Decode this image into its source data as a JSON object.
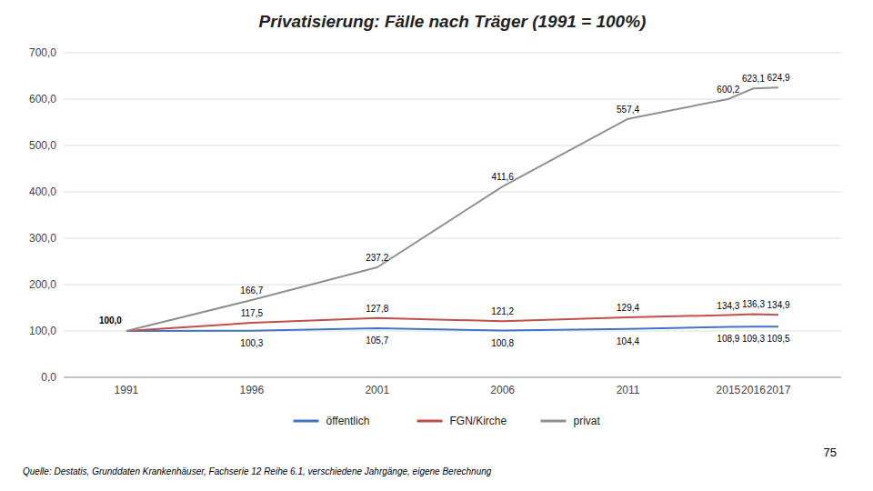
{
  "chart_data": {
    "type": "line",
    "title": "Privatisierung: Fälle nach Träger (1991 = 100%)",
    "x": [
      1991,
      1996,
      2001,
      2006,
      2011,
      2015,
      2016,
      2017
    ],
    "xlim": [
      1988.5,
      2019.5
    ],
    "xticks": [
      1991,
      1996,
      2001,
      2006,
      2011,
      2015,
      2016,
      2017
    ],
    "ylim": [
      0,
      700
    ],
    "yticks": [
      {
        "value": 0,
        "label": "0,0"
      },
      {
        "value": 100,
        "label": "100,0"
      },
      {
        "value": 200,
        "label": "200,0"
      },
      {
        "value": 300,
        "label": "300,0"
      },
      {
        "value": 400,
        "label": "400,0"
      },
      {
        "value": 500,
        "label": "500,0"
      },
      {
        "value": 600,
        "label": "600,0"
      },
      {
        "value": 700,
        "label": "700,0"
      }
    ],
    "grid": true,
    "legend": "bottom",
    "data_labels": true,
    "series": [
      {
        "name": "öffentlich",
        "color": "#4472C4",
        "values": [
          100.0,
          100.3,
          105.7,
          100.8,
          104.4,
          108.9,
          109.3,
          109.5
        ],
        "value_labels": [
          "100,0",
          "100,3",
          "105,7",
          "100,8",
          "104,4",
          "108,9",
          "109,3",
          "109,5"
        ]
      },
      {
        "name": "FGN/Kirche",
        "color": "#C0504D",
        "values": [
          100.0,
          117.5,
          127.8,
          121.2,
          129.4,
          134.3,
          136.3,
          134.9
        ],
        "value_labels": [
          null,
          "117,5",
          "127,8",
          "121,2",
          "129,4",
          "134,3",
          "136,3",
          "134,9"
        ]
      },
      {
        "name": "privat",
        "color": "#909090",
        "values": [
          100.0,
          166.7,
          237.2,
          411.6,
          557.4,
          600.2,
          623.1,
          624.9
        ],
        "value_labels": [
          null,
          "166,7",
          "237,2",
          "411,6",
          "557,4",
          "600,2",
          "623,1",
          "624,9"
        ]
      }
    ],
    "annotations": [
      "Quelle: Destatis, Grunddaten Krankenhäuser, Fachserie 12 Reihe 6.1, verschiedene Jahrgänge, eigene Berechnung",
      "75"
    ]
  }
}
